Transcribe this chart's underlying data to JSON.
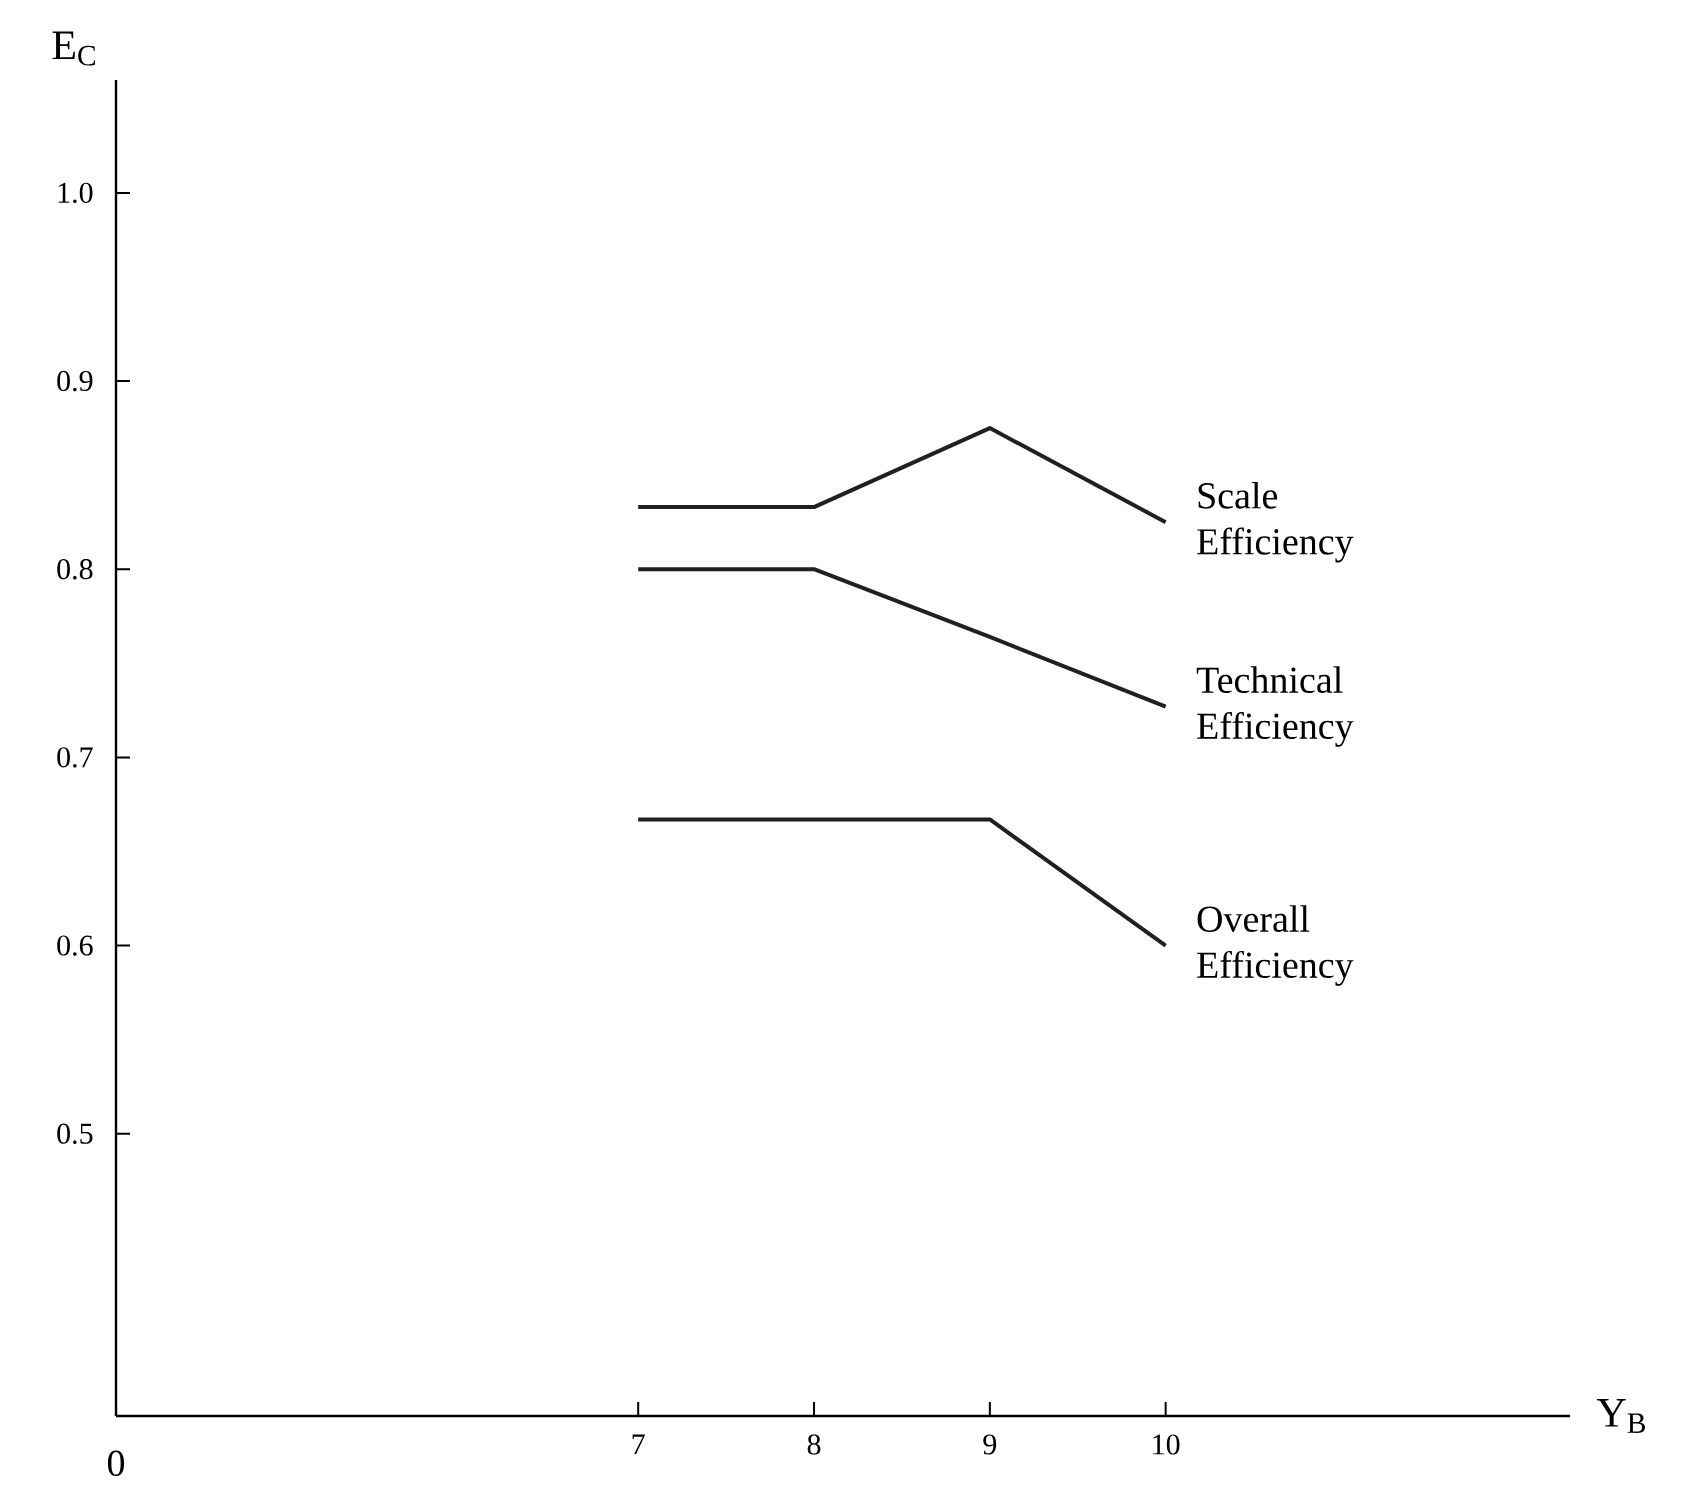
{
  "chart_data": {
    "type": "line",
    "xlabel": "Y$_{B}$",
    "ylabel": "E$_{C}$",
    "x": [
      7,
      8,
      9,
      10
    ],
    "series": [
      {
        "name": "Scale Efficiency",
        "color": "#231f20",
        "values": [
          0.833,
          0.833,
          0.875,
          0.825
        ]
      },
      {
        "name": "Technical Efficiency",
        "color": "#231f20",
        "values": [
          0.8,
          0.8,
          0.764,
          0.727
        ]
      },
      {
        "name": "Overall Efficiency",
        "color": "#231f20",
        "values": [
          0.667,
          0.667,
          0.667,
          0.6
        ]
      }
    ],
    "xlim": [
      4.03,
      12.3
    ],
    "ylim": [
      0.35,
      1.06
    ],
    "xticks": [
      7,
      8,
      9,
      10
    ],
    "yticks": [
      0.5,
      0.6,
      0.7,
      0.8,
      0.9,
      {
        "value": 1.0,
        "label": "1.0"
      }
    ],
    "annotations": [
      "0"
    ],
    "marker": "none",
    "line_style": "solid",
    "grid": false
  }
}
